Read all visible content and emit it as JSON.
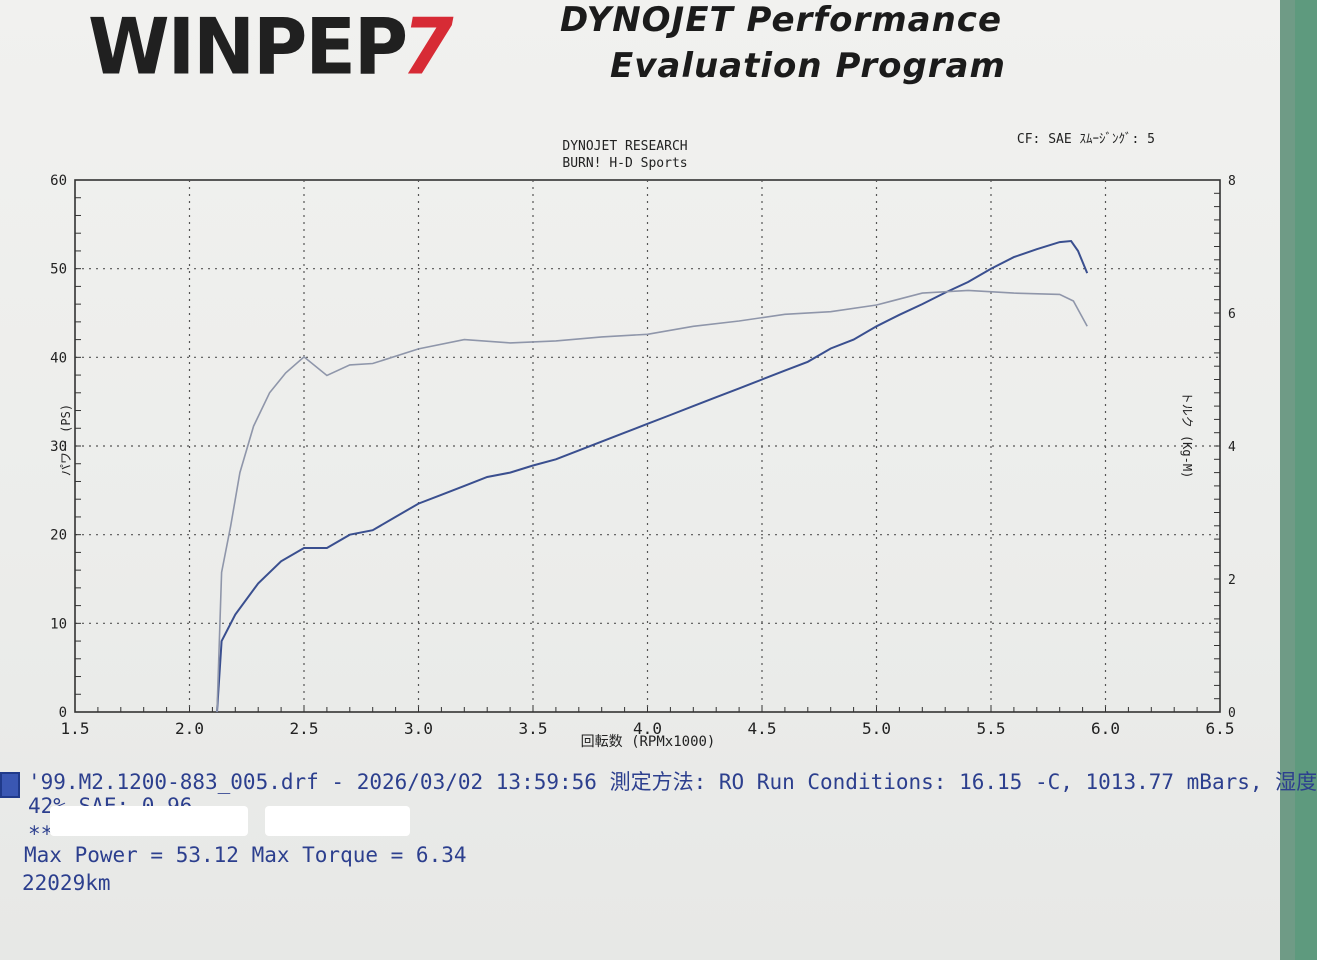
{
  "header": {
    "logo": "WINPEP",
    "logo_number": "7",
    "title_line1": "DYNOJET Performance",
    "title_line2": "Evaluation Program"
  },
  "chart_data": {
    "type": "line",
    "title": "DYNOJET  RESEARCH",
    "subtitle": "BURN! H-D Sports",
    "correction": "CF: SAE  ｽﾑｰｼﾞﾝｸﾞ: 5",
    "xlabel": "回転数 (RPMx1000)",
    "ylabel": "パワー (PS)",
    "y2label": "トルク (Kg-M)",
    "xlim": [
      1.5,
      6.5
    ],
    "ylim": [
      0,
      60
    ],
    "y2lim": [
      0,
      8
    ],
    "x_ticks": [
      "1.5",
      "2.0",
      "2.5",
      "3.0",
      "3.5",
      "4.0",
      "4.5",
      "5.0",
      "5.5",
      "6.0",
      "6.5"
    ],
    "y_ticks": [
      "0",
      "10",
      "20",
      "30",
      "40",
      "50",
      "60"
    ],
    "y2_ticks": [
      "0",
      "2",
      "4",
      "6",
      "8"
    ],
    "grid": true,
    "series": [
      {
        "axis": "left",
        "color": "#3a4f8f",
        "x": [
          2.12,
          2.14,
          2.2,
          2.3,
          2.4,
          2.5,
          2.6,
          2.7,
          2.8,
          2.9,
          3.0,
          3.1,
          3.2,
          3.3,
          3.4,
          3.5,
          3.6,
          3.7,
          3.8,
          3.9,
          4.0,
          4.1,
          4.2,
          4.3,
          4.4,
          4.5,
          4.6,
          4.7,
          4.8,
          4.9,
          5.0,
          5.1,
          5.2,
          5.3,
          5.4,
          5.5,
          5.6,
          5.7,
          5.8,
          5.85,
          5.88,
          5.92
        ],
        "y": [
          0,
          8,
          11,
          14.5,
          17,
          18.5,
          18.5,
          20,
          20.5,
          22,
          23.5,
          24.5,
          25.5,
          26.5,
          27,
          27.8,
          28.5,
          29.5,
          30.5,
          31.5,
          32.5,
          33.5,
          34.5,
          35.5,
          36.5,
          37.5,
          38.5,
          39.5,
          41,
          42,
          43.5,
          44.8,
          46,
          47.3,
          48.5,
          50,
          51.3,
          52.2,
          53,
          53.12,
          52,
          49.5
        ]
      },
      {
        "axis": "right",
        "color": "#8f96aa",
        "x": [
          2.12,
          2.14,
          2.18,
          2.22,
          2.28,
          2.35,
          2.42,
          2.5,
          2.6,
          2.7,
          2.8,
          3.0,
          3.2,
          3.4,
          3.6,
          3.8,
          4.0,
          4.2,
          4.4,
          4.6,
          4.8,
          5.0,
          5.2,
          5.4,
          5.6,
          5.8,
          5.86,
          5.92
        ],
        "y": [
          0,
          2.1,
          2.8,
          3.6,
          4.3,
          4.8,
          5.1,
          5.34,
          5.06,
          5.22,
          5.24,
          5.46,
          5.6,
          5.55,
          5.58,
          5.64,
          5.68,
          5.8,
          5.88,
          5.98,
          6.02,
          6.12,
          6.3,
          6.34,
          6.3,
          6.28,
          6.18,
          5.8
        ]
      }
    ]
  },
  "record": {
    "file_line": "'99.M2.1200-883_005.drf - 2026/03/02 13:59:56  測定方法: RO  Run Conditions: 16.15 -C, 1013.77 mBars,  湿度",
    "cond_line": "42%  SAE: 0.96",
    "note_line": "**",
    "max_line": "Max Power = 53.12  Max Torque = 6.34",
    "km_line": "22029km"
  }
}
